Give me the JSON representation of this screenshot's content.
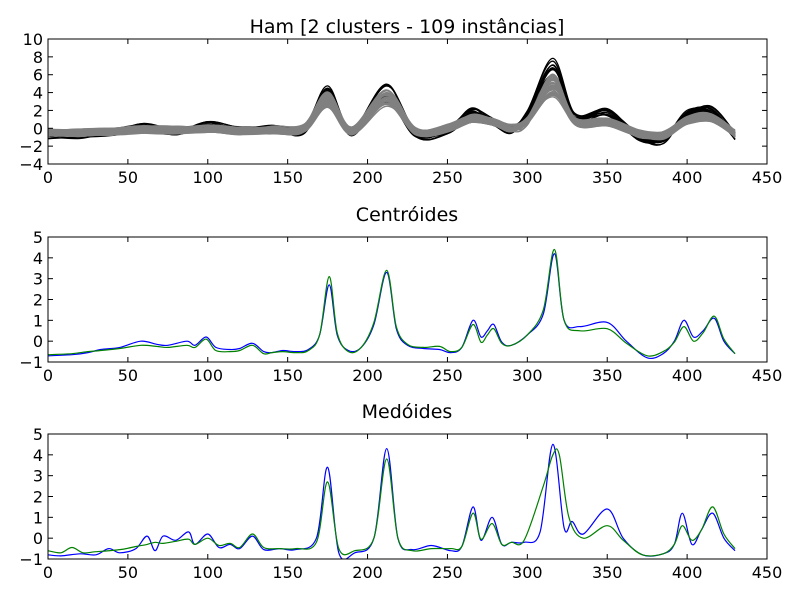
{
  "chart_data": [
    {
      "type": "line",
      "title": "Ham [2 clusters - 109 instâncias]",
      "xlabel": "",
      "ylabel": "",
      "xlim": [
        0,
        450
      ],
      "ylim": [
        -4,
        10
      ],
      "x_ticks": [
        0,
        50,
        100,
        150,
        200,
        250,
        300,
        350,
        400,
        450
      ],
      "y_ticks": [
        -4,
        -2,
        0,
        2,
        4,
        6,
        8,
        10
      ],
      "grid": false,
      "legend": "none",
      "series": [
        {
          "cluster": 1,
          "color": "#000000",
          "count_drawn": 14,
          "x": [
            0,
            20,
            40,
            60,
            80,
            100,
            120,
            140,
            160,
            175,
            190,
            212,
            230,
            250,
            265,
            278,
            290,
            300,
            316,
            330,
            350,
            370,
            385,
            400,
            415,
            430
          ],
          "values": [
            -0.8,
            -0.7,
            -0.5,
            0.1,
            -0.3,
            0.3,
            -0.2,
            -0.1,
            -0.2,
            3.8,
            -0.4,
            4.0,
            -0.6,
            -0.2,
            1.8,
            0.7,
            -0.2,
            1.5,
            6.5,
            1.2,
            1.8,
            -1.0,
            -1.3,
            1.6,
            2.0,
            -0.9
          ]
        },
        {
          "cluster": 2,
          "color": "#808080",
          "count_drawn": 40,
          "x": [
            0,
            20,
            40,
            60,
            80,
            100,
            120,
            140,
            160,
            175,
            190,
            212,
            230,
            250,
            265,
            278,
            290,
            300,
            316,
            330,
            350,
            370,
            385,
            400,
            415,
            430
          ],
          "values": [
            -0.5,
            -0.5,
            -0.4,
            -0.1,
            -0.2,
            0.0,
            -0.3,
            -0.2,
            0.0,
            3.2,
            -0.3,
            3.4,
            -0.3,
            0.0,
            1.1,
            0.7,
            0.0,
            0.8,
            4.8,
            0.8,
            0.7,
            -0.6,
            -0.8,
            0.9,
            1.2,
            -0.6
          ]
        }
      ]
    },
    {
      "type": "line",
      "title": "Centróides",
      "xlabel": "",
      "ylabel": "",
      "xlim": [
        0,
        450
      ],
      "ylim": [
        -1,
        5
      ],
      "x_ticks": [
        0,
        50,
        100,
        150,
        200,
        250,
        300,
        350,
        400,
        450
      ],
      "y_ticks": [
        -1,
        0,
        1,
        2,
        3,
        4,
        5
      ],
      "grid": false,
      "legend": "none",
      "series": [
        {
          "color": "#0000ff",
          "x": [
            0,
            15,
            25,
            33,
            45,
            58,
            68,
            75,
            87,
            92,
            99,
            105,
            114,
            120,
            128,
            135,
            140,
            147,
            155,
            163,
            170,
            176,
            181,
            188,
            196,
            204,
            212,
            218,
            225,
            235,
            245,
            252,
            259,
            266,
            271,
            275,
            279,
            284,
            290,
            300,
            310,
            317,
            323,
            333,
            350,
            362,
            375,
            385,
            392,
            398,
            404,
            410,
            417,
            423,
            430
          ],
          "values": [
            -0.7,
            -0.65,
            -0.55,
            -0.4,
            -0.3,
            0.0,
            -0.15,
            -0.2,
            0.0,
            -0.2,
            0.2,
            -0.3,
            -0.4,
            -0.35,
            -0.1,
            -0.5,
            -0.55,
            -0.45,
            -0.5,
            -0.4,
            0.3,
            2.7,
            0.3,
            -0.45,
            -0.3,
            0.8,
            3.3,
            0.6,
            -0.2,
            -0.35,
            -0.4,
            -0.55,
            -0.3,
            1.0,
            0.2,
            0.5,
            0.8,
            -0.05,
            -0.2,
            0.3,
            1.3,
            4.2,
            1.0,
            0.7,
            0.9,
            0.0,
            -0.8,
            -0.6,
            0.0,
            1.0,
            0.2,
            0.5,
            1.1,
            0.0,
            -0.6
          ]
        },
        {
          "color": "#008000",
          "x": [
            0,
            15,
            25,
            33,
            45,
            58,
            68,
            75,
            87,
            92,
            99,
            105,
            114,
            120,
            128,
            135,
            140,
            147,
            155,
            163,
            170,
            176,
            181,
            188,
            196,
            204,
            212,
            218,
            225,
            235,
            245,
            252,
            259,
            266,
            271,
            275,
            279,
            284,
            290,
            300,
            310,
            317,
            323,
            333,
            350,
            362,
            375,
            385,
            392,
            398,
            404,
            410,
            417,
            423,
            430
          ],
          "values": [
            -0.65,
            -0.6,
            -0.5,
            -0.45,
            -0.35,
            -0.2,
            -0.25,
            -0.3,
            -0.2,
            -0.3,
            0.1,
            -0.45,
            -0.5,
            -0.45,
            -0.2,
            -0.6,
            -0.55,
            -0.5,
            -0.55,
            -0.45,
            0.3,
            3.1,
            0.4,
            -0.5,
            -0.3,
            0.9,
            3.4,
            0.7,
            -0.15,
            -0.3,
            -0.25,
            -0.5,
            -0.3,
            0.8,
            -0.05,
            0.3,
            0.6,
            -0.1,
            -0.2,
            0.3,
            1.5,
            4.4,
            1.0,
            0.5,
            0.6,
            -0.1,
            -0.7,
            -0.5,
            -0.05,
            0.7,
            0.0,
            0.4,
            1.2,
            0.1,
            -0.6
          ]
        }
      ]
    },
    {
      "type": "line",
      "title": "Medóides",
      "xlabel": "",
      "ylabel": "",
      "xlim": [
        0,
        450
      ],
      "ylim": [
        -1,
        5
      ],
      "x_ticks": [
        0,
        50,
        100,
        150,
        200,
        250,
        300,
        350,
        400,
        450
      ],
      "y_ticks": [
        -1,
        0,
        1,
        2,
        3,
        4,
        5
      ],
      "grid": false,
      "legend": "none",
      "series": [
        {
          "color": "#0000ff",
          "x": [
            0,
            8,
            20,
            30,
            38,
            45,
            55,
            62,
            67,
            72,
            80,
            88,
            92,
            100,
            107,
            114,
            120,
            128,
            135,
            145,
            155,
            168,
            175,
            182,
            192,
            204,
            212,
            219,
            228,
            240,
            252,
            259,
            266,
            271,
            278,
            284,
            290,
            298,
            308,
            316,
            323,
            328,
            335,
            350,
            360,
            372,
            385,
            392,
            397,
            403,
            409,
            416,
            423,
            430
          ],
          "values": [
            -0.8,
            -0.85,
            -0.75,
            -0.8,
            -0.5,
            -0.7,
            -0.5,
            0.1,
            -0.6,
            0.1,
            -0.1,
            0.3,
            -0.3,
            0.2,
            -0.45,
            -0.3,
            -0.5,
            0.1,
            -0.55,
            -0.5,
            -0.55,
            0.0,
            3.4,
            -0.7,
            -0.7,
            0.0,
            4.3,
            0.0,
            -0.55,
            -0.35,
            -0.6,
            -0.4,
            1.5,
            -0.1,
            1.0,
            -0.3,
            -0.2,
            -0.2,
            0.3,
            4.5,
            0.5,
            0.8,
            0.2,
            1.4,
            0.0,
            -0.8,
            -0.75,
            -0.3,
            1.2,
            -0.3,
            0.4,
            1.2,
            0.0,
            -0.6
          ]
        },
        {
          "color": "#008000",
          "x": [
            0,
            8,
            15,
            22,
            30,
            45,
            55,
            62,
            67,
            72,
            80,
            88,
            92,
            100,
            107,
            114,
            120,
            128,
            135,
            145,
            155,
            168,
            175,
            182,
            192,
            204,
            212,
            219,
            228,
            240,
            252,
            259,
            266,
            271,
            278,
            284,
            290,
            298,
            310,
            316,
            320,
            326,
            335,
            350,
            360,
            372,
            385,
            392,
            397,
            403,
            409,
            416,
            423,
            430
          ],
          "values": [
            -0.6,
            -0.7,
            -0.45,
            -0.7,
            -0.65,
            -0.55,
            -0.4,
            -0.3,
            -0.2,
            -0.25,
            -0.15,
            -0.05,
            -0.3,
            0.0,
            -0.35,
            -0.25,
            -0.45,
            0.2,
            -0.45,
            -0.5,
            -0.5,
            -0.2,
            2.7,
            -0.5,
            -0.6,
            0.0,
            3.8,
            0.0,
            -0.6,
            -0.5,
            -0.5,
            -0.4,
            1.2,
            -0.05,
            0.7,
            -0.3,
            -0.2,
            -0.1,
            2.5,
            4.0,
            4.0,
            1.0,
            0.0,
            0.6,
            -0.1,
            -0.8,
            -0.75,
            -0.3,
            0.6,
            -0.1,
            0.4,
            1.5,
            0.2,
            -0.5
          ]
        }
      ]
    }
  ]
}
